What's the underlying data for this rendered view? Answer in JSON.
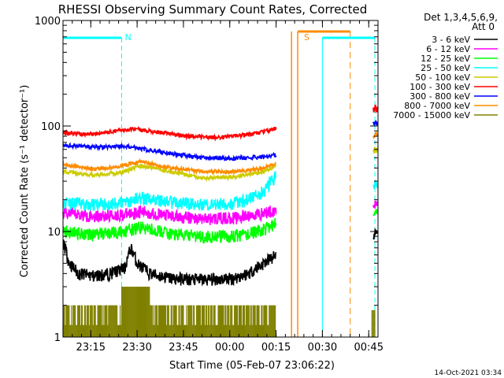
{
  "chart_data": {
    "type": "line",
    "title": "RHESSI Observing Summary Count Rates, Corrected",
    "xlabel": "Start Time (05-Feb-07 23:06:22)",
    "ylabel": "Corrected Count Rate (s⁻¹ detector⁻¹)",
    "x_start_minutes": 0,
    "x_end_minutes": 102,
    "x_ticks": [
      {
        "label": "23:15",
        "t": 9
      },
      {
        "label": "23:30",
        "t": 24
      },
      {
        "label": "23:45",
        "t": 39
      },
      {
        "label": "00:00",
        "t": 54
      },
      {
        "label": "00:15",
        "t": 69
      },
      {
        "label": "00:30",
        "t": 84
      },
      {
        "label": "00:45",
        "t": 99
      }
    ],
    "yscale": "log",
    "ylim": [
      1,
      1000
    ],
    "y_ticks": [
      {
        "label": "1",
        "value": 1
      },
      {
        "label": "10",
        "value": 10
      },
      {
        "label": "100",
        "value": 100
      },
      {
        "label": "1000",
        "value": 1000
      }
    ],
    "legend_header": [
      "Det 1,3,4,5,6,9,",
      "Att 0"
    ],
    "legend_position": "right",
    "series": [
      {
        "name": "3 - 6 keV",
        "color": "#000000",
        "points": [
          [
            0,
            8
          ],
          [
            2,
            5
          ],
          [
            5,
            4
          ],
          [
            10,
            3.8
          ],
          [
            15,
            4
          ],
          [
            20,
            4.5
          ],
          [
            22,
            7
          ],
          [
            24,
            5
          ],
          [
            28,
            4
          ],
          [
            35,
            3.6
          ],
          [
            45,
            3.5
          ],
          [
            55,
            3.6
          ],
          [
            60,
            4
          ],
          [
            65,
            5
          ],
          [
            69,
            6
          ]
        ],
        "post": [
          [
            101,
            10
          ],
          [
            102,
            9
          ]
        ]
      },
      {
        "name": "6 - 12 keV",
        "color": "#ff00ff",
        "points": [
          [
            0,
            15
          ],
          [
            10,
            14
          ],
          [
            20,
            14.5
          ],
          [
            25,
            15.5
          ],
          [
            35,
            14
          ],
          [
            45,
            13.2
          ],
          [
            55,
            13.5
          ],
          [
            60,
            14
          ],
          [
            65,
            15
          ],
          [
            69,
            16
          ]
        ],
        "post": [
          [
            101,
            19
          ],
          [
            102,
            18
          ]
        ]
      },
      {
        "name": "12 - 25 keV",
        "color": "#00ff00",
        "points": [
          [
            0,
            10
          ],
          [
            10,
            9.5
          ],
          [
            20,
            10
          ],
          [
            25,
            11
          ],
          [
            35,
            9.5
          ],
          [
            45,
            9
          ],
          [
            55,
            9
          ],
          [
            60,
            9.5
          ],
          [
            65,
            10.5
          ],
          [
            69,
            12
          ]
        ],
        "post": [
          [
            101,
            16
          ],
          [
            102,
            15
          ]
        ]
      },
      {
        "name": "25 - 50 keV",
        "color": "#00ffff",
        "points": [
          [
            0,
            19
          ],
          [
            10,
            18
          ],
          [
            20,
            19
          ],
          [
            25,
            21
          ],
          [
            35,
            19
          ],
          [
            45,
            18
          ],
          [
            55,
            18.5
          ],
          [
            60,
            20
          ],
          [
            65,
            24
          ],
          [
            69,
            34
          ]
        ],
        "post": [
          [
            101,
            29
          ],
          [
            102,
            27
          ]
        ]
      },
      {
        "name": "50 - 100 keV",
        "color": "#cccc00",
        "points": [
          [
            0,
            37
          ],
          [
            10,
            34
          ],
          [
            20,
            37
          ],
          [
            25,
            42
          ],
          [
            35,
            37
          ],
          [
            45,
            32
          ],
          [
            55,
            33
          ],
          [
            60,
            35
          ],
          [
            65,
            37
          ],
          [
            69,
            42
          ]
        ],
        "post": [
          [
            101,
            60
          ],
          [
            102,
            58
          ]
        ]
      },
      {
        "name": "100 - 300 keV",
        "color": "#ff0000",
        "points": [
          [
            0,
            87
          ],
          [
            5,
            84
          ],
          [
            10,
            84
          ],
          [
            18,
            90
          ],
          [
            24,
            94
          ],
          [
            30,
            88
          ],
          [
            40,
            80
          ],
          [
            50,
            78
          ],
          [
            55,
            80
          ],
          [
            60,
            83
          ],
          [
            65,
            88
          ],
          [
            69,
            95
          ]
        ],
        "post": [
          [
            101,
            150
          ],
          [
            102,
            140
          ]
        ]
      },
      {
        "name": "300 - 800 keV",
        "color": "#0000ff",
        "points": [
          [
            0,
            66
          ],
          [
            10,
            63
          ],
          [
            20,
            64
          ],
          [
            25,
            61
          ],
          [
            35,
            55
          ],
          [
            45,
            50
          ],
          [
            55,
            49
          ],
          [
            60,
            50
          ],
          [
            65,
            51
          ],
          [
            69,
            53
          ]
        ],
        "post": [
          [
            101,
            115
          ],
          [
            102,
            105
          ]
        ]
      },
      {
        "name": "800 - 7000 keV",
        "color": "#ff8c00",
        "points": [
          [
            0,
            43
          ],
          [
            10,
            39
          ],
          [
            18,
            41
          ],
          [
            25,
            46
          ],
          [
            35,
            40
          ],
          [
            45,
            37
          ],
          [
            55,
            37
          ],
          [
            60,
            38
          ],
          [
            65,
            40
          ],
          [
            69,
            44
          ]
        ],
        "post": [
          [
            101,
            86
          ],
          [
            102,
            80
          ]
        ]
      },
      {
        "name": "7000 - 15000 keV",
        "color": "#808000",
        "points": [
          [
            0,
            1.6
          ],
          [
            102,
            1.6
          ]
        ],
        "post": []
      }
    ],
    "annotations": [
      {
        "text": "N",
        "color": "#00ffff",
        "t": 19
      },
      {
        "text": "S",
        "color": "#ff8c00",
        "t": 77
      }
    ],
    "footer_date": "14-Oct-2021 03:34"
  }
}
